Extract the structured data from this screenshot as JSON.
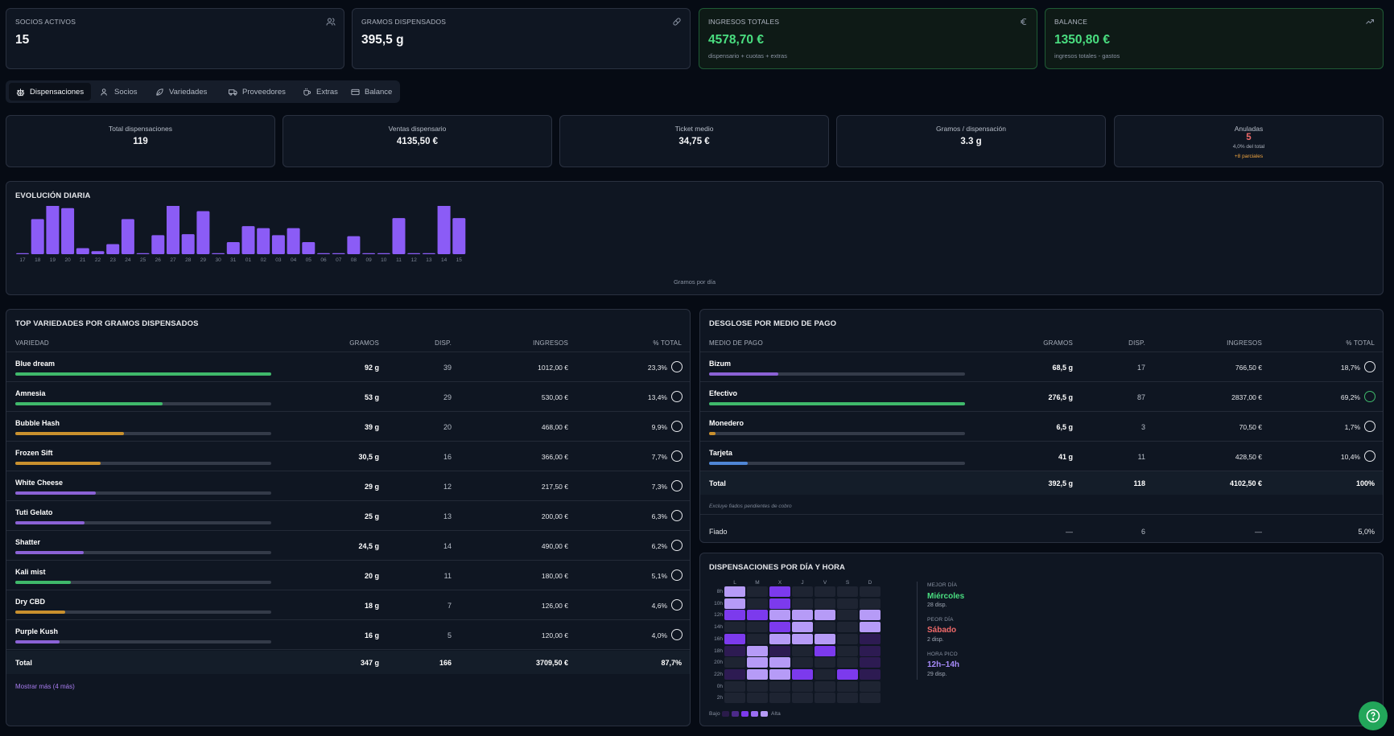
{
  "kpis": [
    {
      "label": "SOCIOS ACTIVOS",
      "value": "15",
      "sub": "",
      "icon": "users-icon"
    },
    {
      "label": "GRAMOS DISPENSADOS",
      "value": "395,5 g",
      "sub": "",
      "icon": "pill-icon"
    },
    {
      "label": "INGRESOS TOTALES",
      "value": "4578,70 €",
      "sub": "dispensario + cuotas + extras",
      "icon": "euro-icon"
    },
    {
      "label": "BALANCE",
      "value": "1350,80 €",
      "sub": "ingresos totales - gastos",
      "icon": "trend-up-icon"
    }
  ],
  "tabs": [
    {
      "label": "Dispensaciones",
      "icon": "scale-icon",
      "active": true
    },
    {
      "label": "Socios",
      "icon": "users-icon"
    },
    {
      "label": "Variedades",
      "icon": "leaf-icon"
    },
    {
      "label": "Proveedores",
      "icon": "truck-icon"
    },
    {
      "label": "Extras",
      "icon": "coffee-icon"
    },
    {
      "label": "Balance",
      "icon": "wallet-icon"
    }
  ],
  "stats": [
    {
      "label": "Total dispensaciones",
      "value": "119"
    },
    {
      "label": "Ventas dispensario",
      "value": "4135,50 €"
    },
    {
      "label": "Ticket medio",
      "value": "34,75 €"
    },
    {
      "label": "Gramos / dispensación",
      "value": "3.3 g"
    },
    {
      "label": "Anuladas",
      "value": "5",
      "sub": "4,0% del total",
      "note": "+8 parciales"
    }
  ],
  "daily": {
    "title": "EVOLUCIÓN DIARIA",
    "footer": "Gramos por día",
    "color": "#8b5cf6",
    "chart_data": {
      "type": "bar",
      "categories": [
        "17",
        "18",
        "19",
        "20",
        "21",
        "22",
        "23",
        "24",
        "25",
        "26",
        "27",
        "28",
        "29",
        "30",
        "31",
        "01",
        "02",
        "03",
        "04",
        "05",
        "06",
        "07",
        "08",
        "09",
        "10",
        "11",
        "12",
        "13",
        "14",
        "15"
      ],
      "values": [
        0.5,
        17.5,
        28.5,
        23,
        3,
        1.5,
        5,
        17.5,
        0.5,
        9.5,
        24.5,
        10,
        21.5,
        0.5,
        6,
        14,
        13,
        9.5,
        13,
        6,
        0.5,
        0.5,
        9,
        0.5,
        0.5,
        18,
        0.5,
        0.5,
        24.5,
        18
      ]
    }
  },
  "varieties": {
    "title": "TOP VARIEDADES POR GRAMOS DISPENSADOS",
    "headers": [
      "VARIEDAD",
      "GRAMOS",
      "DISP.",
      "INGRESOS",
      "% TOTAL"
    ],
    "rows": [
      {
        "name": "Blue dream",
        "grams": "92 g",
        "disp": "39",
        "income": "1012,00 €",
        "pct": "23,3%",
        "share": 1.0,
        "color": "#3fb96b"
      },
      {
        "name": "Amnesia",
        "grams": "53 g",
        "disp": "29",
        "income": "530,00 €",
        "pct": "13,4%",
        "share": 0.576,
        "color": "#3fb96b"
      },
      {
        "name": "Bubble Hash",
        "grams": "39 g",
        "disp": "20",
        "income": "468,00 €",
        "pct": "9,9%",
        "share": 0.424,
        "color": "#c9902e"
      },
      {
        "name": "Frozen Sift",
        "grams": "30,5 g",
        "disp": "16",
        "income": "366,00 €",
        "pct": "7,7%",
        "share": 0.332,
        "color": "#c9902e"
      },
      {
        "name": "White Cheese",
        "grams": "29 g",
        "disp": "12",
        "income": "217,50 €",
        "pct": "7,3%",
        "share": 0.315,
        "color": "#8b62d6"
      },
      {
        "name": "Tuti Gelato",
        "grams": "25 g",
        "disp": "13",
        "income": "200,00 €",
        "pct": "6,3%",
        "share": 0.272,
        "color": "#8b62d6"
      },
      {
        "name": "Shatter",
        "grams": "24,5 g",
        "disp": "14",
        "income": "490,00 €",
        "pct": "6,2%",
        "share": 0.266,
        "color": "#8b62d6"
      },
      {
        "name": "Kali mist",
        "grams": "20 g",
        "disp": "11",
        "income": "180,00 €",
        "pct": "5,1%",
        "share": 0.217,
        "color": "#3fb96b"
      },
      {
        "name": "Dry CBD",
        "grams": "18 g",
        "disp": "7",
        "income": "126,00 €",
        "pct": "4,6%",
        "share": 0.196,
        "color": "#c9902e"
      },
      {
        "name": "Purple Kush",
        "grams": "16 g",
        "disp": "5",
        "income": "120,00 €",
        "pct": "4,0%",
        "share": 0.174,
        "color": "#8b62d6"
      }
    ],
    "total": {
      "label": "Total",
      "grams": "347 g",
      "disp": "166",
      "income": "3709,50 €",
      "pct": "87,7%"
    },
    "more_link": "Mostrar más (4 más)"
  },
  "payments": {
    "title": "DESGLOSE POR MEDIO DE PAGO",
    "headers": [
      "MEDIO DE PAGO",
      "GRAMOS",
      "DISP.",
      "INGRESOS",
      "% TOTAL"
    ],
    "rows": [
      {
        "name": "Bizum",
        "grams": "68,5 g",
        "disp": "17",
        "income": "766,50 €",
        "pct": "18,7%",
        "share": 0.27,
        "color": "#8b62d6"
      },
      {
        "name": "Efectivo",
        "grams": "276,5 g",
        "disp": "87",
        "income": "2837,00 €",
        "pct": "69,2%",
        "share": 1.0,
        "color": "#3fb96b"
      },
      {
        "name": "Monedero",
        "grams": "6,5 g",
        "disp": "3",
        "income": "70,50 €",
        "pct": "1,7%",
        "share": 0.025,
        "color": "#c9902e"
      },
      {
        "name": "Tarjeta",
        "grams": "41 g",
        "disp": "11",
        "income": "428,50 €",
        "pct": "10,4%",
        "share": 0.15,
        "color": "#4f86d6"
      }
    ],
    "total": {
      "label": "Total",
      "grams": "392,5 g",
      "disp": "118",
      "income": "4102,50 €",
      "pct": "100%"
    },
    "note": "Excluye fiados pendientes de cobro",
    "fiado": {
      "label": "Fiado",
      "grams": "—",
      "disp": "6",
      "income": "—",
      "pct": "5,0%"
    }
  },
  "heatmap": {
    "title": "DISPENSACIONES POR DÍA Y HORA",
    "days": [
      "L",
      "M",
      "X",
      "J",
      "V",
      "S",
      "D"
    ],
    "hours": [
      "8h",
      "10h",
      "12h",
      "14h",
      "16h",
      "18h",
      "20h",
      "22h",
      "0h",
      "2h"
    ],
    "levels": [
      [
        3,
        0,
        2,
        0,
        0,
        0,
        0
      ],
      [
        3,
        0,
        2,
        0,
        0,
        0,
        0
      ],
      [
        2,
        2,
        3,
        3,
        3,
        0,
        3
      ],
      [
        0,
        0,
        2,
        3,
        0,
        0,
        3
      ],
      [
        2,
        0,
        3,
        3,
        3,
        0,
        1
      ],
      [
        1,
        3,
        1,
        0,
        2,
        0,
        1
      ],
      [
        0,
        3,
        3,
        0,
        0,
        0,
        1
      ],
      [
        1,
        3,
        3,
        2,
        0,
        2,
        1
      ],
      [
        0,
        0,
        0,
        0,
        0,
        0,
        0
      ],
      [
        0,
        0,
        0,
        0,
        0,
        0,
        0
      ]
    ],
    "legend_low": "Bajo",
    "legend_high": "Alta",
    "best_day_label": "MEJOR DÍA",
    "best_day": "Miércoles",
    "best_day_sub": "28 disp.",
    "worst_day_label": "PEOR DÍA",
    "worst_day": "Sábado",
    "worst_day_sub": "2 disp.",
    "peak_label": "HORA PICO",
    "peak": "12h–14h",
    "peak_sub": "29 disp."
  }
}
